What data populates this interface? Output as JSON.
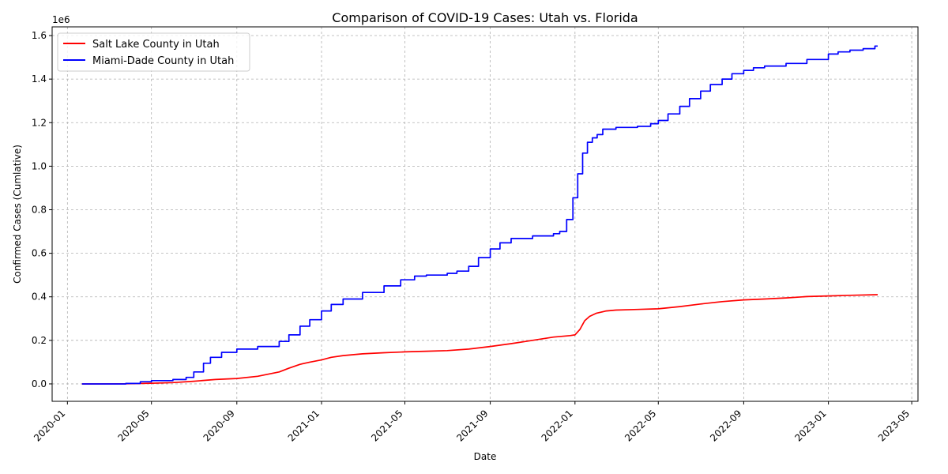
{
  "chart_data": {
    "type": "line",
    "title": "Comparison of COVID-19 Cases: Utah vs. Florida",
    "xlabel": "Date",
    "ylabel": "Confirmed Cases (Cumlative)",
    "y_offset_label": "1e6",
    "xlim": [
      "2019-12-10",
      "2023-05-10"
    ],
    "ylim": [
      -80000,
      1640000
    ],
    "x_ticks": [
      "2020-01-01",
      "2020-05-01",
      "2020-09-01",
      "2021-01-01",
      "2021-05-01",
      "2021-09-01",
      "2022-01-01",
      "2022-05-01",
      "2022-09-01",
      "2023-01-01",
      "2023-05-01"
    ],
    "x_tick_labels": [
      "2020-01",
      "2020-05",
      "2020-09",
      "2021-01",
      "2021-05",
      "2021-09",
      "2022-01",
      "2022-05",
      "2022-09",
      "2023-01",
      "2023-05"
    ],
    "y_ticks": [
      0,
      200000,
      400000,
      600000,
      800000,
      1000000,
      1200000,
      1400000,
      1600000
    ],
    "y_tick_labels": [
      "0.0",
      "0.2",
      "0.4",
      "0.6",
      "0.8",
      "1.0",
      "1.2",
      "1.4",
      "1.6"
    ],
    "grid": true,
    "legend_position": "top-left",
    "series": [
      {
        "name": "Salt Lake County in Utah",
        "color": "#ff0000",
        "step": false,
        "points": [
          [
            "2020-01-22",
            0
          ],
          [
            "2020-03-25",
            500
          ],
          [
            "2020-05-01",
            3000
          ],
          [
            "2020-06-01",
            6000
          ],
          [
            "2020-07-01",
            12000
          ],
          [
            "2020-08-01",
            20000
          ],
          [
            "2020-09-01",
            25000
          ],
          [
            "2020-10-01",
            35000
          ],
          [
            "2020-11-01",
            55000
          ],
          [
            "2020-11-15",
            72000
          ],
          [
            "2020-12-01",
            90000
          ],
          [
            "2020-12-15",
            100000
          ],
          [
            "2021-01-01",
            110000
          ],
          [
            "2021-01-15",
            122000
          ],
          [
            "2021-02-01",
            130000
          ],
          [
            "2021-03-01",
            138000
          ],
          [
            "2021-04-01",
            143000
          ],
          [
            "2021-05-01",
            147000
          ],
          [
            "2021-06-01",
            150000
          ],
          [
            "2021-07-01",
            153000
          ],
          [
            "2021-08-01",
            160000
          ],
          [
            "2021-09-01",
            172000
          ],
          [
            "2021-10-01",
            185000
          ],
          [
            "2021-11-01",
            200000
          ],
          [
            "2021-12-01",
            215000
          ],
          [
            "2021-12-25",
            222000
          ],
          [
            "2022-01-01",
            225000
          ],
          [
            "2022-01-08",
            250000
          ],
          [
            "2022-01-15",
            290000
          ],
          [
            "2022-01-22",
            310000
          ],
          [
            "2022-02-01",
            325000
          ],
          [
            "2022-02-15",
            335000
          ],
          [
            "2022-03-01",
            339000
          ],
          [
            "2022-04-01",
            342000
          ],
          [
            "2022-05-01",
            345000
          ],
          [
            "2022-06-01",
            355000
          ],
          [
            "2022-07-01",
            367000
          ],
          [
            "2022-08-01",
            378000
          ],
          [
            "2022-09-01",
            386000
          ],
          [
            "2022-10-01",
            390000
          ],
          [
            "2022-11-01",
            395000
          ],
          [
            "2022-12-01",
            401000
          ],
          [
            "2023-01-01",
            404000
          ],
          [
            "2023-02-01",
            407000
          ],
          [
            "2023-03-13",
            410000
          ]
        ]
      },
      {
        "name": "Miami-Dade County in Utah",
        "color": "#0000ff",
        "step": true,
        "points": [
          [
            "2020-01-22",
            0
          ],
          [
            "2020-03-25",
            2000
          ],
          [
            "2020-04-15",
            10000
          ],
          [
            "2020-05-01",
            15000
          ],
          [
            "2020-06-01",
            20000
          ],
          [
            "2020-06-20",
            30000
          ],
          [
            "2020-07-01",
            55000
          ],
          [
            "2020-07-15",
            95000
          ],
          [
            "2020-07-25",
            122000
          ],
          [
            "2020-08-10",
            145000
          ],
          [
            "2020-09-01",
            160000
          ],
          [
            "2020-10-01",
            172000
          ],
          [
            "2020-11-01",
            195000
          ],
          [
            "2020-11-15",
            225000
          ],
          [
            "2020-12-01",
            265000
          ],
          [
            "2020-12-15",
            295000
          ],
          [
            "2021-01-01",
            335000
          ],
          [
            "2021-01-15",
            365000
          ],
          [
            "2021-02-01",
            390000
          ],
          [
            "2021-03-01",
            420000
          ],
          [
            "2021-04-01",
            450000
          ],
          [
            "2021-04-25",
            478000
          ],
          [
            "2021-05-15",
            495000
          ],
          [
            "2021-06-01",
            500000
          ],
          [
            "2021-07-01",
            508000
          ],
          [
            "2021-07-15",
            518000
          ],
          [
            "2021-08-01",
            540000
          ],
          [
            "2021-08-15",
            580000
          ],
          [
            "2021-09-01",
            620000
          ],
          [
            "2021-09-15",
            648000
          ],
          [
            "2021-10-01",
            668000
          ],
          [
            "2021-11-01",
            680000
          ],
          [
            "2021-12-01",
            690000
          ],
          [
            "2021-12-10",
            700000
          ],
          [
            "2021-12-20",
            755000
          ],
          [
            "2021-12-29",
            855000
          ],
          [
            "2022-01-05",
            965000
          ],
          [
            "2022-01-12",
            1060000
          ],
          [
            "2022-01-19",
            1110000
          ],
          [
            "2022-01-26",
            1130000
          ],
          [
            "2022-02-02",
            1145000
          ],
          [
            "2022-02-10",
            1170000
          ],
          [
            "2022-03-01",
            1178000
          ],
          [
            "2022-04-01",
            1183000
          ],
          [
            "2022-04-20",
            1195000
          ],
          [
            "2022-05-01",
            1210000
          ],
          [
            "2022-05-15",
            1240000
          ],
          [
            "2022-06-01",
            1275000
          ],
          [
            "2022-06-15",
            1310000
          ],
          [
            "2022-07-01",
            1345000
          ],
          [
            "2022-07-15",
            1375000
          ],
          [
            "2022-08-01",
            1400000
          ],
          [
            "2022-08-15",
            1425000
          ],
          [
            "2022-09-01",
            1440000
          ],
          [
            "2022-09-15",
            1452000
          ],
          [
            "2022-10-01",
            1460000
          ],
          [
            "2022-11-01",
            1472000
          ],
          [
            "2022-12-01",
            1490000
          ],
          [
            "2023-01-01",
            1515000
          ],
          [
            "2023-01-15",
            1525000
          ],
          [
            "2023-02-01",
            1533000
          ],
          [
            "2023-02-20",
            1540000
          ],
          [
            "2023-03-09",
            1552000
          ],
          [
            "2023-03-13",
            1552000
          ]
        ]
      }
    ]
  }
}
